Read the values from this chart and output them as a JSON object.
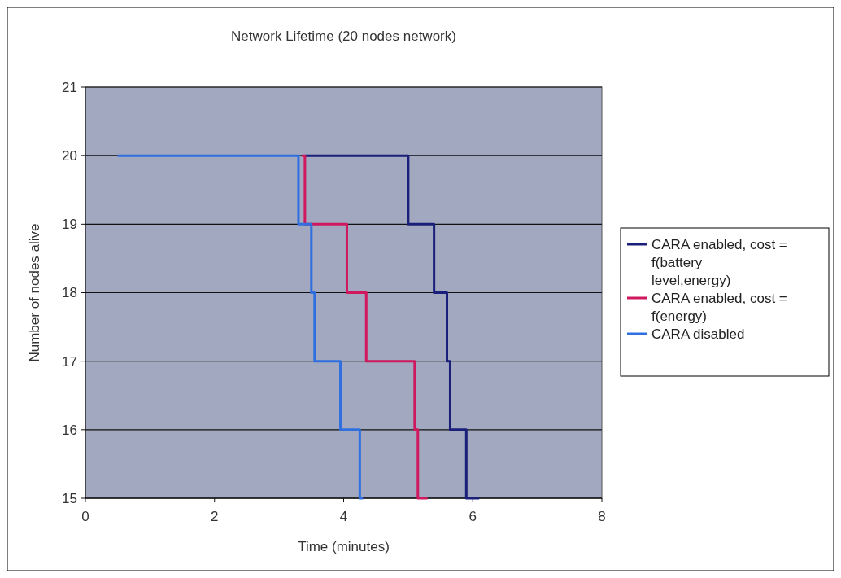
{
  "chart_data": {
    "type": "step",
    "title": "Network Lifetime (20 nodes network)",
    "xlabel": "Time (minutes)",
    "ylabel": "Number of nodes alive",
    "series": [
      {
        "name": "CARA enabled, cost = f(battery level,energy)",
        "color": "#1a1f7a",
        "x": [
          3.4,
          5.0,
          5.4,
          5.6,
          5.65,
          5.9,
          6.1
        ],
        "values": [
          20,
          19,
          18,
          17,
          16,
          15,
          15
        ]
      },
      {
        "name": "CARA enabled, cost = f(energy)",
        "color": "#d0185f",
        "x": [
          3.35,
          3.4,
          4.05,
          4.35,
          5.1,
          5.15,
          5.3
        ],
        "values": [
          20,
          19,
          18,
          17,
          16,
          15,
          15
        ]
      },
      {
        "name": "CARA disabled",
        "color": "#2f6fe0",
        "x": [
          0.5,
          3.3,
          3.5,
          3.55,
          3.95,
          4.25,
          4.3
        ],
        "values": [
          20,
          19,
          18,
          17,
          16,
          15,
          15
        ]
      }
    ],
    "xlim": [
      0,
      8
    ],
    "xticks": [
      0,
      2,
      4,
      6,
      8
    ],
    "ylim": [
      15,
      21
    ],
    "yticks": [
      15,
      16,
      17,
      18,
      19,
      20,
      21
    ],
    "grid": "y",
    "legend": "right"
  }
}
